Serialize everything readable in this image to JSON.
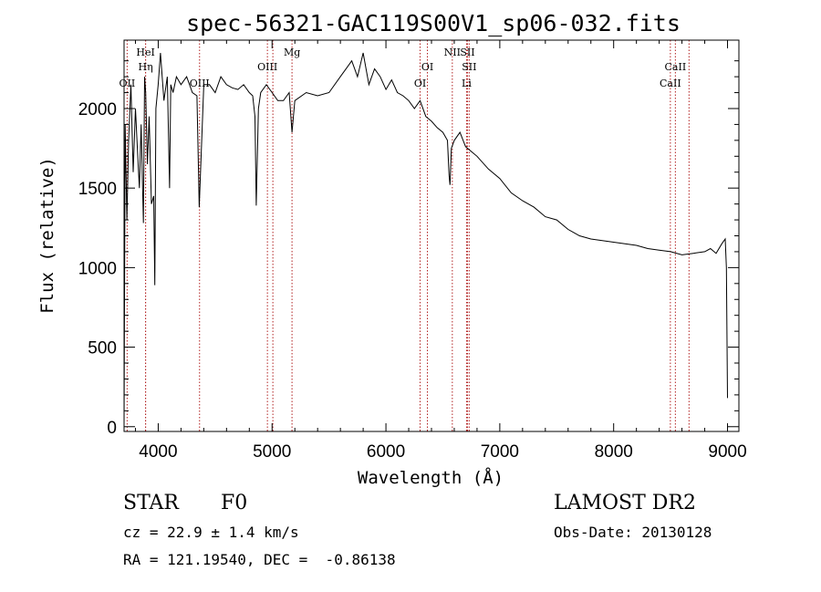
{
  "chart_data": {
    "type": "line",
    "title": "spec-56321-GAC119S00V1_sp06-032.fits",
    "xlabel": "Wavelength (Å)",
    "ylabel": "Flux (relative)",
    "xlim": [
      3700,
      9100
    ],
    "ylim": [
      -30,
      2430
    ],
    "xticks": [
      4000,
      5000,
      6000,
      7000,
      8000,
      9000
    ],
    "yticks": [
      0,
      500,
      1000,
      1500,
      2000
    ],
    "grid": false,
    "series": [
      {
        "x": [
          3700,
          3710,
          3725,
          3740,
          3760,
          3780,
          3800,
          3820,
          3835,
          3850,
          3870,
          3880,
          3890,
          3905,
          3920,
          3940,
          3960,
          3970,
          3980,
          4000,
          4020,
          4050,
          4080,
          4100,
          4110,
          4130,
          4160,
          4200,
          4250,
          4300,
          4340,
          4360,
          4400,
          4450,
          4500,
          4550,
          4600,
          4650,
          4700,
          4750,
          4800,
          4830,
          4850,
          4861,
          4880,
          4900,
          4950,
          5000,
          5050,
          5100,
          5150,
          5175,
          5200,
          5300,
          5400,
          5500,
          5600,
          5700,
          5750,
          5800,
          5850,
          5900,
          5950,
          6000,
          6050,
          6100,
          6150,
          6200,
          6250,
          6300,
          6350,
          6400,
          6450,
          6500,
          6540,
          6555,
          6563,
          6575,
          6600,
          6650,
          6700,
          6750,
          6800,
          6900,
          7000,
          7100,
          7200,
          7300,
          7400,
          7500,
          7600,
          7700,
          7800,
          7900,
          8000,
          8100,
          8200,
          8300,
          8400,
          8500,
          8600,
          8700,
          8800,
          8850,
          8900,
          8950,
          8980,
          8990,
          9000
        ],
        "y": [
          0,
          1900,
          1300,
          1800,
          2150,
          1600,
          2000,
          1700,
          1500,
          1900,
          1280,
          2200,
          2100,
          1650,
          1950,
          1400,
          1450,
          890,
          2000,
          2150,
          2350,
          2050,
          2200,
          1500,
          2150,
          2100,
          2200,
          2150,
          2200,
          2100,
          2080,
          1380,
          2150,
          2150,
          2100,
          2200,
          2150,
          2130,
          2120,
          2150,
          2100,
          2080,
          1950,
          1390,
          2000,
          2100,
          2150,
          2100,
          2050,
          2050,
          2100,
          1850,
          2050,
          2100,
          2080,
          2100,
          2200,
          2300,
          2200,
          2350,
          2150,
          2250,
          2200,
          2120,
          2180,
          2100,
          2080,
          2050,
          2000,
          2050,
          1950,
          1920,
          1880,
          1850,
          1800,
          1580,
          1520,
          1750,
          1800,
          1850,
          1760,
          1730,
          1700,
          1620,
          1560,
          1470,
          1420,
          1380,
          1320,
          1300,
          1240,
          1200,
          1180,
          1170,
          1160,
          1150,
          1140,
          1120,
          1110,
          1100,
          1080,
          1090,
          1100,
          1120,
          1090,
          1150,
          1180,
          1000,
          180
        ]
      }
    ],
    "line_markers": [
      {
        "wavelength": 3727,
        "label": "OII",
        "row": 3
      },
      {
        "wavelength": 3889,
        "label": "HeI",
        "row": 1
      },
      {
        "wavelength": 3889,
        "label": "Hη",
        "row": 2
      },
      {
        "wavelength": 4363,
        "label": "OIII",
        "row": 3
      },
      {
        "wavelength": 4959,
        "label": "OIII",
        "row": 2
      },
      {
        "wavelength": 5007,
        "label": "",
        "row": 2
      },
      {
        "wavelength": 5175,
        "label": "Mg",
        "row": 1
      },
      {
        "wavelength": 6300,
        "label": "OI",
        "row": 3
      },
      {
        "wavelength": 6364,
        "label": "OI",
        "row": 2
      },
      {
        "wavelength": 6583,
        "label": "NII",
        "row": 1
      },
      {
        "wavelength": 6716,
        "label": "SII",
        "row": 1
      },
      {
        "wavelength": 6731,
        "label": "SII",
        "row": 2
      },
      {
        "wavelength": 6708,
        "label": "Li",
        "row": 3
      },
      {
        "wavelength": 8498,
        "label": "CaII",
        "row": 3
      },
      {
        "wavelength": 8542,
        "label": "CaII",
        "row": 2
      },
      {
        "wavelength": 8662,
        "label": "",
        "row": 2
      }
    ]
  },
  "info": {
    "object_class": "STAR",
    "subclass": "F0",
    "survey": "LAMOST DR2",
    "cz_line": "cz = 22.9 ± 1.4 km/s",
    "obs_date_line": "Obs-Date: 20130128",
    "coords_line": "RA = 121.19540, DEC =  -0.86138"
  }
}
